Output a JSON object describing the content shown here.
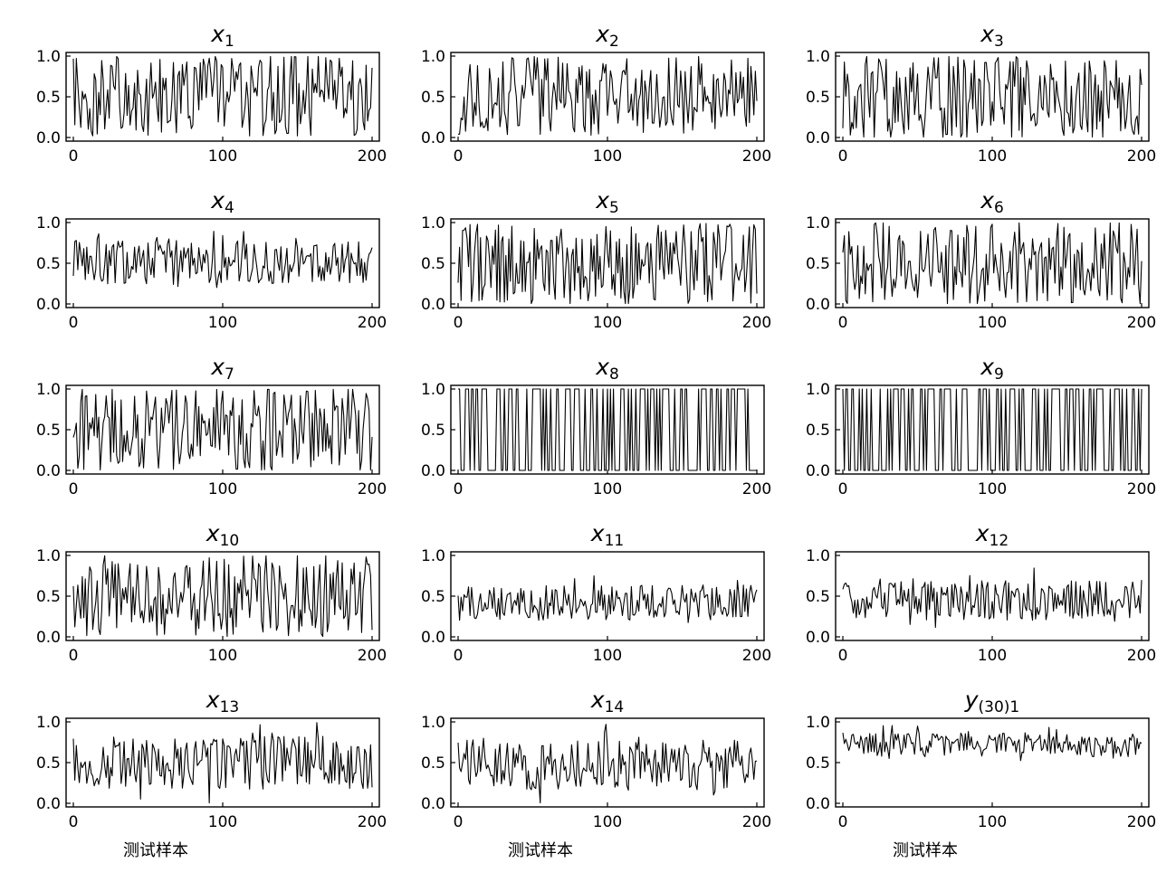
{
  "figure": {
    "xlabel": "测试样本"
  },
  "chart_data": [
    {
      "type": "line",
      "title": "x",
      "title_sub": "1",
      "xlim": [
        0,
        200
      ],
      "ylim": [
        0,
        1
      ],
      "xticks": [
        "0",
        "100",
        "200"
      ],
      "yticks": [
        "0.0",
        "0.5",
        "1.0"
      ],
      "xlabel": "",
      "mode": "random",
      "seed": 1,
      "mean": 0.5,
      "spread": 0.5,
      "smooth": 0.0
    },
    {
      "type": "line",
      "title": "x",
      "title_sub": "2",
      "xlim": [
        0,
        200
      ],
      "ylim": [
        0,
        1
      ],
      "xticks": [
        "0",
        "100",
        "200"
      ],
      "yticks": [
        "0.0",
        "0.5",
        "1.0"
      ],
      "xlabel": "",
      "mode": "random",
      "seed": 2,
      "mean": 0.5,
      "spread": 0.5,
      "smooth": 0.0
    },
    {
      "type": "line",
      "title": "x",
      "title_sub": "3",
      "xlim": [
        0,
        200
      ],
      "ylim": [
        0,
        1
      ],
      "xticks": [
        "0",
        "100",
        "200"
      ],
      "yticks": [
        "0.0",
        "0.5",
        "1.0"
      ],
      "xlabel": "",
      "mode": "random",
      "seed": 3,
      "mean": 0.5,
      "spread": 0.5,
      "smooth": 0.0
    },
    {
      "type": "line",
      "title": "x",
      "title_sub": "4",
      "xlim": [
        0,
        200
      ],
      "ylim": [
        0,
        1
      ],
      "xticks": [
        "0",
        "100",
        "200"
      ],
      "yticks": [
        "0.0",
        "0.5",
        "1.0"
      ],
      "xlabel": "",
      "mode": "random",
      "seed": 4,
      "mean": 0.52,
      "spread": 0.28,
      "smooth": 0.0
    },
    {
      "type": "line",
      "title": "x",
      "title_sub": "5",
      "xlim": [
        0,
        200
      ],
      "ylim": [
        0,
        1
      ],
      "xticks": [
        "0",
        "100",
        "200"
      ],
      "yticks": [
        "0.0",
        "0.5",
        "1.0"
      ],
      "xlabel": "",
      "mode": "random",
      "seed": 5,
      "mean": 0.5,
      "spread": 0.5,
      "smooth": 0.0
    },
    {
      "type": "line",
      "title": "x",
      "title_sub": "6",
      "xlim": [
        0,
        200
      ],
      "ylim": [
        0,
        1
      ],
      "xticks": [
        "0",
        "100",
        "200"
      ],
      "yticks": [
        "0.0",
        "0.5",
        "1.0"
      ],
      "xlabel": "",
      "mode": "random",
      "seed": 6,
      "mean": 0.5,
      "spread": 0.5,
      "smooth": 0.0
    },
    {
      "type": "line",
      "title": "x",
      "title_sub": "7",
      "xlim": [
        0,
        200
      ],
      "ylim": [
        0,
        1
      ],
      "xticks": [
        "0",
        "100",
        "200"
      ],
      "yticks": [
        "0.0",
        "0.5",
        "1.0"
      ],
      "xlabel": "",
      "mode": "random",
      "seed": 7,
      "mean": 0.5,
      "spread": 0.5,
      "smooth": 0.0
    },
    {
      "type": "line",
      "title": "x",
      "title_sub": "8",
      "xlim": [
        0,
        200
      ],
      "ylim": [
        0,
        1
      ],
      "xticks": [
        "0",
        "100",
        "200"
      ],
      "yticks": [
        "0.0",
        "0.5",
        "1.0"
      ],
      "xlabel": "",
      "mode": "binary",
      "seed": 8,
      "mean": 0.5,
      "spread": 0.5,
      "smooth": 0.0
    },
    {
      "type": "line",
      "title": "x",
      "title_sub": "9",
      "xlim": [
        0,
        200
      ],
      "ylim": [
        0,
        1
      ],
      "xticks": [
        "0",
        "100",
        "200"
      ],
      "yticks": [
        "0.0",
        "0.5",
        "1.0"
      ],
      "xlabel": "",
      "mode": "binary",
      "seed": 9,
      "mean": 0.5,
      "spread": 0.5,
      "smooth": 0.0
    },
    {
      "type": "line",
      "title": "x",
      "title_sub": "10",
      "xlim": [
        0,
        200
      ],
      "ylim": [
        0,
        1
      ],
      "xticks": [
        "0",
        "100",
        "200"
      ],
      "yticks": [
        "0.0",
        "0.5",
        "1.0"
      ],
      "xlabel": "",
      "mode": "random",
      "seed": 10,
      "mean": 0.5,
      "spread": 0.5,
      "smooth": 0.0
    },
    {
      "type": "line",
      "title": "x",
      "title_sub": "11",
      "xlim": [
        0,
        200
      ],
      "ylim": [
        0,
        1
      ],
      "xticks": [
        "0",
        "100",
        "200"
      ],
      "yticks": [
        "0.0",
        "0.5",
        "1.0"
      ],
      "xlabel": "",
      "mode": "random",
      "seed": 11,
      "mean": 0.42,
      "spread": 0.22,
      "smooth": 0.0
    },
    {
      "type": "line",
      "title": "x",
      "title_sub": "12",
      "xlim": [
        0,
        200
      ],
      "ylim": [
        0,
        1
      ],
      "xticks": [
        "0",
        "100",
        "200"
      ],
      "yticks": [
        "0.0",
        "0.5",
        "1.0"
      ],
      "xlabel": "",
      "mode": "random",
      "seed": 12,
      "mean": 0.45,
      "spread": 0.25,
      "smooth": 0.0
    },
    {
      "type": "line",
      "title": "x",
      "title_sub": "13",
      "xlim": [
        0,
        200
      ],
      "ylim": [
        0,
        1
      ],
      "xticks": [
        "0",
        "100",
        "200"
      ],
      "yticks": [
        "0.0",
        "0.5",
        "1.0"
      ],
      "xlabel": "测试样本",
      "mode": "random",
      "seed": 13,
      "mean": 0.5,
      "spread": 0.33,
      "smooth": 0.0
    },
    {
      "type": "line",
      "title": "x",
      "title_sub": "14",
      "xlim": [
        0,
        200
      ],
      "ylim": [
        0,
        1
      ],
      "xticks": [
        "0",
        "100",
        "200"
      ],
      "yticks": [
        "0.0",
        "0.5",
        "1.0"
      ],
      "xlabel": "测试样本",
      "mode": "random",
      "seed": 14,
      "mean": 0.48,
      "spread": 0.32,
      "smooth": 0.0
    },
    {
      "type": "line",
      "title": "y",
      "title_sub": "(30)1",
      "xlim": [
        0,
        200
      ],
      "ylim": [
        0,
        1
      ],
      "xticks": [
        "0",
        "100",
        "200"
      ],
      "yticks": [
        "0.0",
        "0.5",
        "1.0"
      ],
      "xlabel": "测试样本",
      "mode": "random",
      "seed": 15,
      "mean": 0.72,
      "spread": 0.15,
      "smooth": 0.0
    }
  ]
}
